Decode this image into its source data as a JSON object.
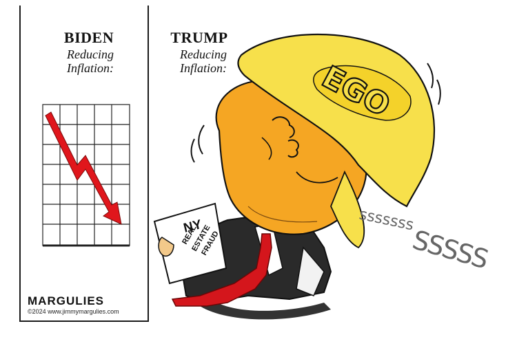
{
  "left_panel": {
    "title": "BIDEN",
    "subtitle_line1": "Reducing",
    "subtitle_line2": "Inflation:"
  },
  "right_panel": {
    "title": "TRUMP",
    "subtitle_line1": "Reducing",
    "subtitle_line2": "Inflation:"
  },
  "helmet_text": "EGO",
  "paper": {
    "line1": "NY",
    "line2": "REAL",
    "line3": "ESTATE",
    "line4": "FRAUD"
  },
  "deflation_small": "sssssss",
  "deflation_big": "SSSSS",
  "signature": "MARGULIES",
  "signature_sub": "©2024 www.jimmymargulies.com",
  "colors": {
    "arrow_red": "#e0161c",
    "skin_orange": "#f5a623",
    "hair_yellow": "#f7e04b",
    "tie_red": "#d4161c",
    "ink": "#111111"
  }
}
